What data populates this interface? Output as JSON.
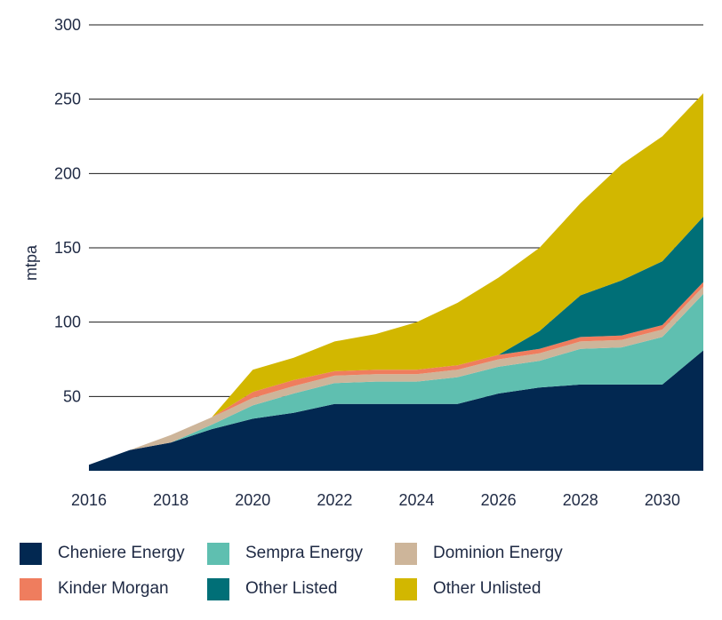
{
  "chart_data": {
    "type": "area",
    "stacked": true,
    "ylabel": "mtpa",
    "xlabel": "",
    "ylim": [
      0,
      300
    ],
    "xlim": [
      2016,
      2031
    ],
    "yticks": [
      50,
      100,
      150,
      200,
      250,
      300
    ],
    "xticks": [
      2016,
      2018,
      2020,
      2022,
      2024,
      2026,
      2028,
      2030
    ],
    "x": [
      2016,
      2017,
      2018,
      2019,
      2020,
      2021,
      2022,
      2023,
      2024,
      2025,
      2026,
      2027,
      2028,
      2029,
      2030,
      2031
    ],
    "series": [
      {
        "name": "Cheniere Energy",
        "color": "#022851",
        "values": [
          4,
          14,
          19,
          28,
          35,
          39,
          45,
          45,
          45,
          45,
          52,
          56,
          58,
          58,
          58,
          81
        ]
      },
      {
        "name": "Sempra Energy",
        "color": "#5fbfb0",
        "values": [
          0,
          0,
          0,
          3,
          9,
          13,
          14,
          15,
          15,
          18,
          18,
          18,
          24,
          25,
          32,
          38
        ]
      },
      {
        "name": "Dominion Energy",
        "color": "#cdb59a",
        "values": [
          0,
          0,
          5,
          5,
          5,
          5,
          5,
          5,
          5,
          5,
          5,
          5,
          5,
          5,
          5,
          5
        ]
      },
      {
        "name": "Kinder Morgan",
        "color": "#ef7d5e",
        "values": [
          0,
          0,
          0,
          0,
          4,
          4,
          3,
          3,
          3,
          3,
          3,
          3,
          3,
          3,
          3,
          3
        ]
      },
      {
        "name": "Other Listed",
        "color": "#006f77",
        "values": [
          0,
          0,
          0,
          0,
          0,
          0,
          0,
          0,
          0,
          0,
          0,
          12,
          28,
          37,
          43,
          44
        ]
      },
      {
        "name": "Other Unlisted",
        "color": "#d2b700",
        "values": [
          0,
          0,
          0,
          0,
          15,
          15,
          20,
          24,
          32,
          42,
          52,
          56,
          62,
          78,
          84,
          83
        ]
      }
    ]
  }
}
